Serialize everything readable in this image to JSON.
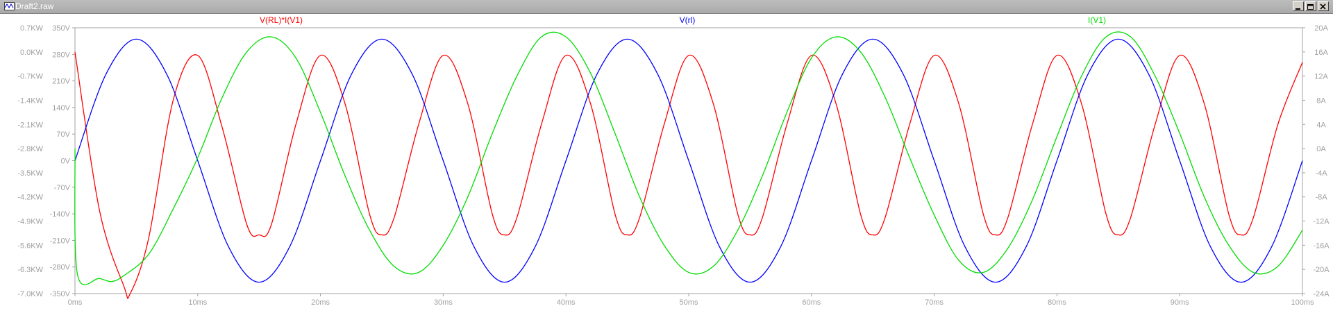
{
  "window": {
    "title": "Draft2.raw"
  },
  "chart_data": {
    "type": "line",
    "x_ticks": [
      "0ms",
      "10ms",
      "20ms",
      "30ms",
      "40ms",
      "50ms",
      "60ms",
      "70ms",
      "80ms",
      "90ms",
      "100ms"
    ],
    "xlim_ms": [
      0,
      100
    ],
    "axes": {
      "left_power": {
        "ticks": [
          "0.7KW",
          "0.0KW",
          "-0.7KW",
          "-1.4KW",
          "-2.1KW",
          "-2.8KW",
          "-3.5KW",
          "-4.2KW",
          "-4.9KW",
          "-5.6KW",
          "-6.3KW",
          "-7.0KW"
        ],
        "range_kw": [
          -7.0,
          0.7
        ]
      },
      "left_voltage": {
        "ticks": [
          "350V",
          "280V",
          "210V",
          "140V",
          "70V",
          "0V",
          "-70V",
          "-140V",
          "-210V",
          "-280V",
          "-350V"
        ],
        "range_v": [
          -350,
          350
        ]
      },
      "right_current": {
        "ticks": [
          "20A",
          "16A",
          "12A",
          "8A",
          "4A",
          "0A",
          "-4A",
          "-8A",
          "-12A",
          "-16A",
          "-20A",
          "-24A"
        ],
        "range_a": [
          -24,
          20
        ]
      }
    },
    "grid": false,
    "series": [
      {
        "name": "V(RL)*I(V1)",
        "color": "#ff0000",
        "axis": "left_power",
        "description_values": {
          "avg_kw": -2.7,
          "amplitude_kw": 2.6,
          "freq_hz": 100,
          "phase_peak_ms": 4.1,
          "start_kw": 0.0,
          "min_kw": -7.0
        },
        "x": [
          0,
          2,
          4,
          4.5,
          6,
          8,
          10,
          12,
          14,
          15,
          16,
          18,
          20,
          22,
          24,
          25,
          26,
          28,
          30,
          32,
          34,
          35,
          36,
          38,
          40,
          42,
          44,
          45,
          46,
          48,
          50,
          52,
          54,
          55,
          56,
          58,
          60,
          62,
          64,
          65,
          66,
          68,
          70,
          72,
          74,
          75,
          76,
          78,
          80,
          82,
          84,
          85,
          86,
          88,
          90,
          92,
          94,
          95,
          96,
          98,
          100
        ],
        "y": [
          0.0,
          -4.6,
          -6.8,
          -7.0,
          -5.4,
          -1.4,
          -0.1,
          -2.2,
          -5.0,
          -5.3,
          -5.0,
          -2.1,
          -0.1,
          -1.5,
          -4.7,
          -5.3,
          -4.8,
          -2.1,
          -0.1,
          -1.5,
          -4.7,
          -5.3,
          -4.8,
          -2.1,
          -0.1,
          -1.5,
          -4.7,
          -5.3,
          -4.8,
          -2.1,
          -0.1,
          -1.5,
          -4.7,
          -5.3,
          -4.8,
          -2.1,
          -0.1,
          -1.5,
          -4.7,
          -5.3,
          -4.8,
          -2.1,
          -0.1,
          -1.5,
          -4.7,
          -5.3,
          -4.8,
          -2.1,
          -0.1,
          -1.5,
          -4.7,
          -5.3,
          -4.8,
          -2.1,
          -0.1,
          -1.5,
          -4.7,
          -5.3,
          -4.8,
          -2.1,
          -0.3
        ]
      },
      {
        "name": "V(rl)",
        "color": "#0000ff",
        "axis": "left_voltage",
        "x": [
          0,
          2.5,
          5,
          7.5,
          10,
          12.5,
          15,
          17.5,
          20,
          22.5,
          25,
          27.5,
          30,
          32.5,
          35,
          37.5,
          40,
          42.5,
          45,
          47.5,
          50,
          52.5,
          55,
          57.5,
          60,
          62.5,
          65,
          67.5,
          70,
          72.5,
          75,
          77.5,
          80,
          82.5,
          85,
          87.5,
          90,
          92.5,
          95,
          97.5,
          100
        ],
        "y": [
          0,
          226,
          320,
          226,
          0,
          -226,
          -320,
          -226,
          0,
          226,
          320,
          226,
          0,
          -226,
          -320,
          -226,
          0,
          226,
          320,
          226,
          0,
          -226,
          -320,
          -226,
          0,
          226,
          320,
          226,
          0,
          -226,
          -320,
          -226,
          0,
          226,
          320,
          226,
          0,
          -226,
          -320,
          -226,
          0
        ]
      },
      {
        "name": "I(V1)",
        "color": "#00dd00",
        "axis": "right_current",
        "x": [
          0,
          0.2,
          2,
          3,
          4,
          6,
          8,
          10,
          12,
          14,
          16,
          18,
          20,
          22,
          24,
          26,
          28,
          30,
          32,
          34,
          36,
          38,
          40,
          42,
          44,
          46,
          48,
          50,
          52,
          54,
          56,
          58,
          60,
          62,
          64,
          66,
          68,
          70,
          72,
          74,
          76,
          78,
          80,
          82,
          84,
          86,
          88,
          90,
          92,
          94,
          96,
          98,
          100
        ],
        "y": [
          0,
          -20.8,
          -21.5,
          -22.0,
          -21.0,
          -17.5,
          -10.0,
          -1.5,
          8.5,
          16.0,
          18.5,
          15.0,
          6.0,
          -4.5,
          -13.5,
          -19.5,
          -20.5,
          -16.0,
          -8.0,
          2.5,
          12.0,
          18.5,
          18.5,
          12.5,
          2.5,
          -8.0,
          -16.0,
          -20.5,
          -19.5,
          -13.5,
          -4.5,
          6.0,
          15.0,
          18.5,
          16.0,
          8.5,
          -1.5,
          -11.0,
          -18.5,
          -20.5,
          -16.5,
          -8.5,
          2.0,
          12.0,
          18.5,
          18.5,
          12.0,
          2.5,
          -8.0,
          -16.0,
          -20.5,
          -19.5,
          -13.5
        ]
      }
    ]
  }
}
